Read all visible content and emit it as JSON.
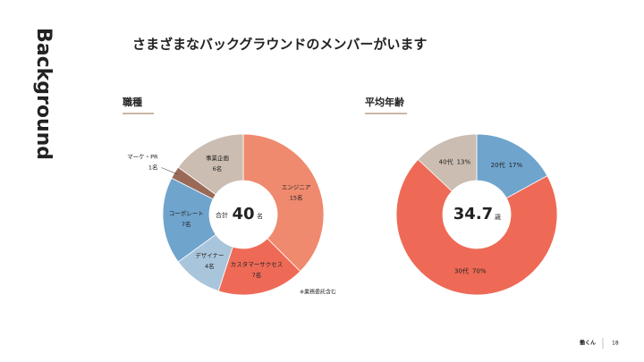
{
  "slide": {
    "side_title": "Background",
    "title": "さまざまなバックグラウンドのメンバーがいます",
    "footer_logo": "働くん",
    "page_number": 18
  },
  "chart_data": [
    {
      "type": "donut",
      "title": "職種",
      "categories": [
        "エンジニア",
        "カスタマーサクセス",
        "デザイナー",
        "コーポレート",
        "マーケ・PR",
        "事業企画"
      ],
      "values": [
        15,
        7,
        4,
        7,
        1,
        6
      ],
      "value_labels": [
        "15名",
        "7名",
        "4名",
        "7名",
        "1名",
        "6名"
      ],
      "colors": [
        "#ef8a6f",
        "#ee6a56",
        "#a9c5dc",
        "#6fa4cd",
        "#9a6a57",
        "#cbbdb1"
      ],
      "center_label": "合計",
      "total": 40,
      "total_unit": "名",
      "note": "※業務委託含む"
    },
    {
      "type": "donut",
      "title": "平均年齢",
      "categories": [
        "20代",
        "30代",
        "40代"
      ],
      "values": [
        17,
        70,
        13
      ],
      "value_labels": [
        "17%",
        "70%",
        "13%"
      ],
      "colors": [
        "#6fa4cd",
        "#ee6a56",
        "#cbbdb1"
      ],
      "total": 34.7,
      "total_unit": "歳"
    }
  ]
}
